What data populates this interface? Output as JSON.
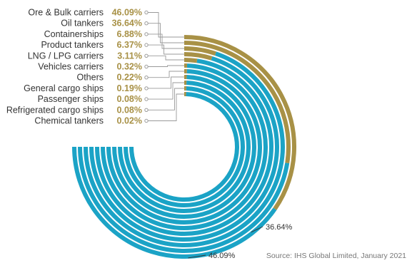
{
  "chart_data": {
    "type": "radial-bar",
    "categories": [
      "Ore & Bulk carriers",
      "Oil tankers",
      "Containerships",
      "Product tankers",
      "LNG / LPG carriers",
      "Vehicles carriers",
      "Others",
      "General cargo ships",
      "Passenger ships",
      "Refrigerated cargo ships",
      "Chemical tankers"
    ],
    "value_labels": [
      "46.09%",
      "36.64%",
      "6.88%",
      "6.37%",
      "3.11%",
      "0.32%",
      "0.22%",
      "0.19%",
      "0.08%",
      "0.08%",
      "0.02%"
    ],
    "values": [
      46.09,
      36.64,
      6.88,
      6.37,
      3.11,
      0.32,
      0.22,
      0.19,
      0.08,
      0.08,
      0.02
    ],
    "callouts": [
      "36.64%",
      "46.09%"
    ]
  },
  "source": "Source: IHS Global Limited, January 2021",
  "colors": {
    "primary": "#1ba3c6",
    "accent": "#a89146",
    "label": "#333333",
    "connector": "#9a9a9a"
  }
}
